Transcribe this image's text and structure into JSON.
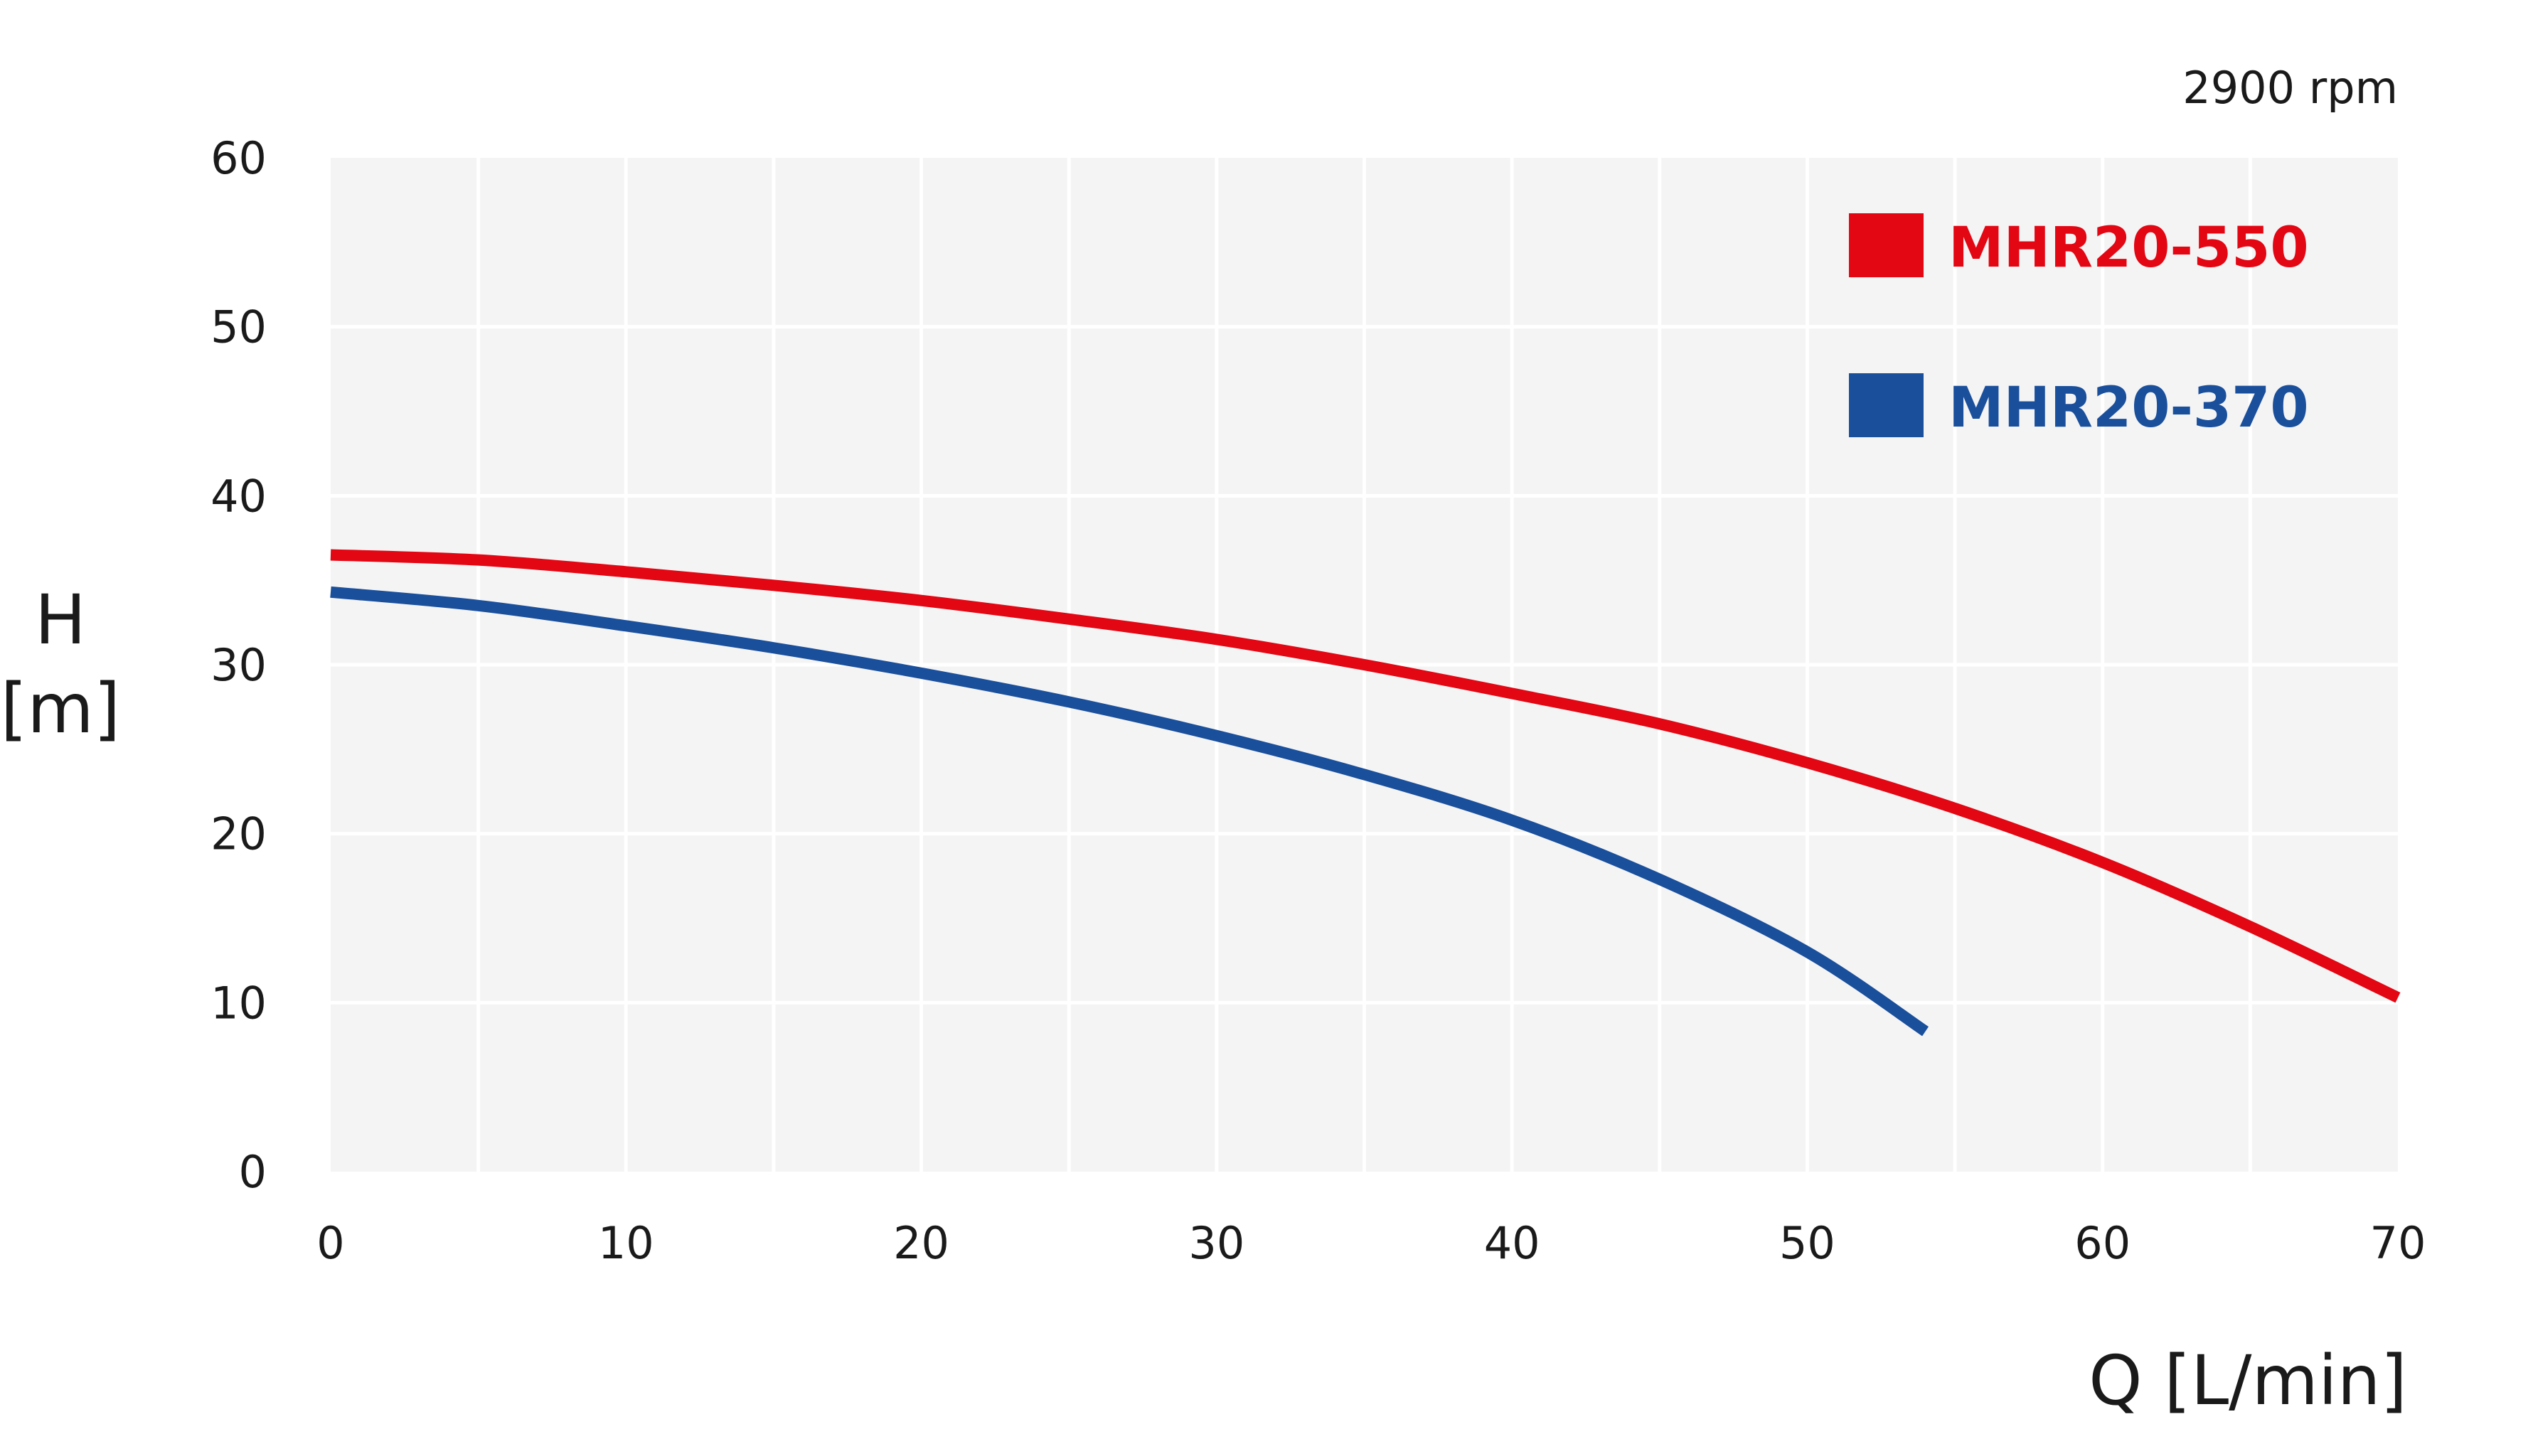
{
  "chart_data": {
    "type": "line",
    "title": "",
    "note": "2900 rpm",
    "xlabel": "Q [L/min]",
    "ylabel_line1": "H",
    "ylabel_line2": "[m]",
    "xlim": [
      0,
      70
    ],
    "ylim": [
      0,
      60
    ],
    "x_ticks": [
      0,
      10,
      20,
      30,
      40,
      50,
      60,
      70
    ],
    "y_ticks": [
      0,
      10,
      20,
      30,
      40,
      50,
      60
    ],
    "x_tick_labels": [
      "0",
      "10",
      "20",
      "30",
      "40",
      "50",
      "60",
      "70"
    ],
    "y_tick_labels": [
      "0",
      "10",
      "20",
      "30",
      "40",
      "50",
      "60"
    ],
    "grid": true,
    "grid_x_step": 5,
    "grid_y_step": 10,
    "legend_position": "top-right",
    "series": [
      {
        "name": "MHR20-550",
        "color": "#e30613",
        "x": [
          0,
          5,
          10,
          15,
          20,
          25,
          30,
          35,
          40,
          45,
          50,
          55,
          60,
          65,
          70
        ],
        "y": [
          36.5,
          36.2,
          35.5,
          34.7,
          33.8,
          32.7,
          31.5,
          30.0,
          28.3,
          26.5,
          24.2,
          21.5,
          18.3,
          14.5,
          10.3
        ]
      },
      {
        "name": "MHR20-370",
        "color": "#1a4f9c",
        "x": [
          0,
          5,
          10,
          15,
          20,
          25,
          30,
          35,
          40,
          45,
          50,
          54
        ],
        "y": [
          34.3,
          33.5,
          32.3,
          31.0,
          29.5,
          27.8,
          25.8,
          23.5,
          20.8,
          17.3,
          13.0,
          8.3
        ]
      }
    ]
  },
  "colors": {
    "plot_background": "#f4f4f4",
    "grid_line": "#ffffff",
    "text": "#1a1a1a"
  }
}
